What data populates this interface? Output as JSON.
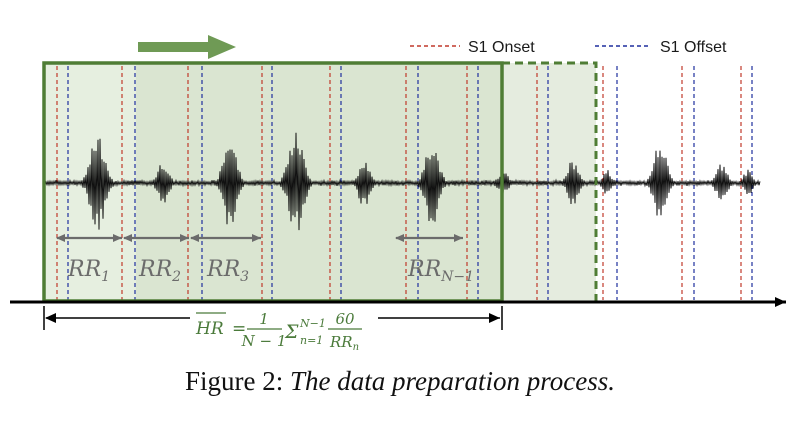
{
  "legend": {
    "onset_label": "S1 Onset",
    "offset_label": "S1 Offset"
  },
  "intervals": [
    {
      "base": "RR",
      "sub": "1"
    },
    {
      "base": "RR",
      "sub": "2"
    },
    {
      "base": "RR",
      "sub": "3"
    },
    {
      "base": "RR",
      "sub": "N−1"
    }
  ],
  "formula": {
    "lhs": "HR",
    "equals": "=",
    "frac1_num": "1",
    "frac1_den": "N − 1",
    "sigma": "Σ",
    "sigma_sup": "N−1",
    "sigma_sub": "n=1",
    "frac2_num": "60",
    "frac2_den_base": "RR",
    "frac2_den_sub": "n"
  },
  "caption": {
    "prefix": "Figure 2: ",
    "title": "The data preparation process."
  },
  "colors": {
    "green": "#4f7d35",
    "arrow_green": "#6f9a55",
    "onset": "#c0392b",
    "offset": "#1f2f9e",
    "signal": "#111111",
    "rr_arrow": "#6b6b6b"
  },
  "icons": {
    "direction": "right-arrow-icon",
    "timeline": "time-axis-arrow-icon"
  }
}
